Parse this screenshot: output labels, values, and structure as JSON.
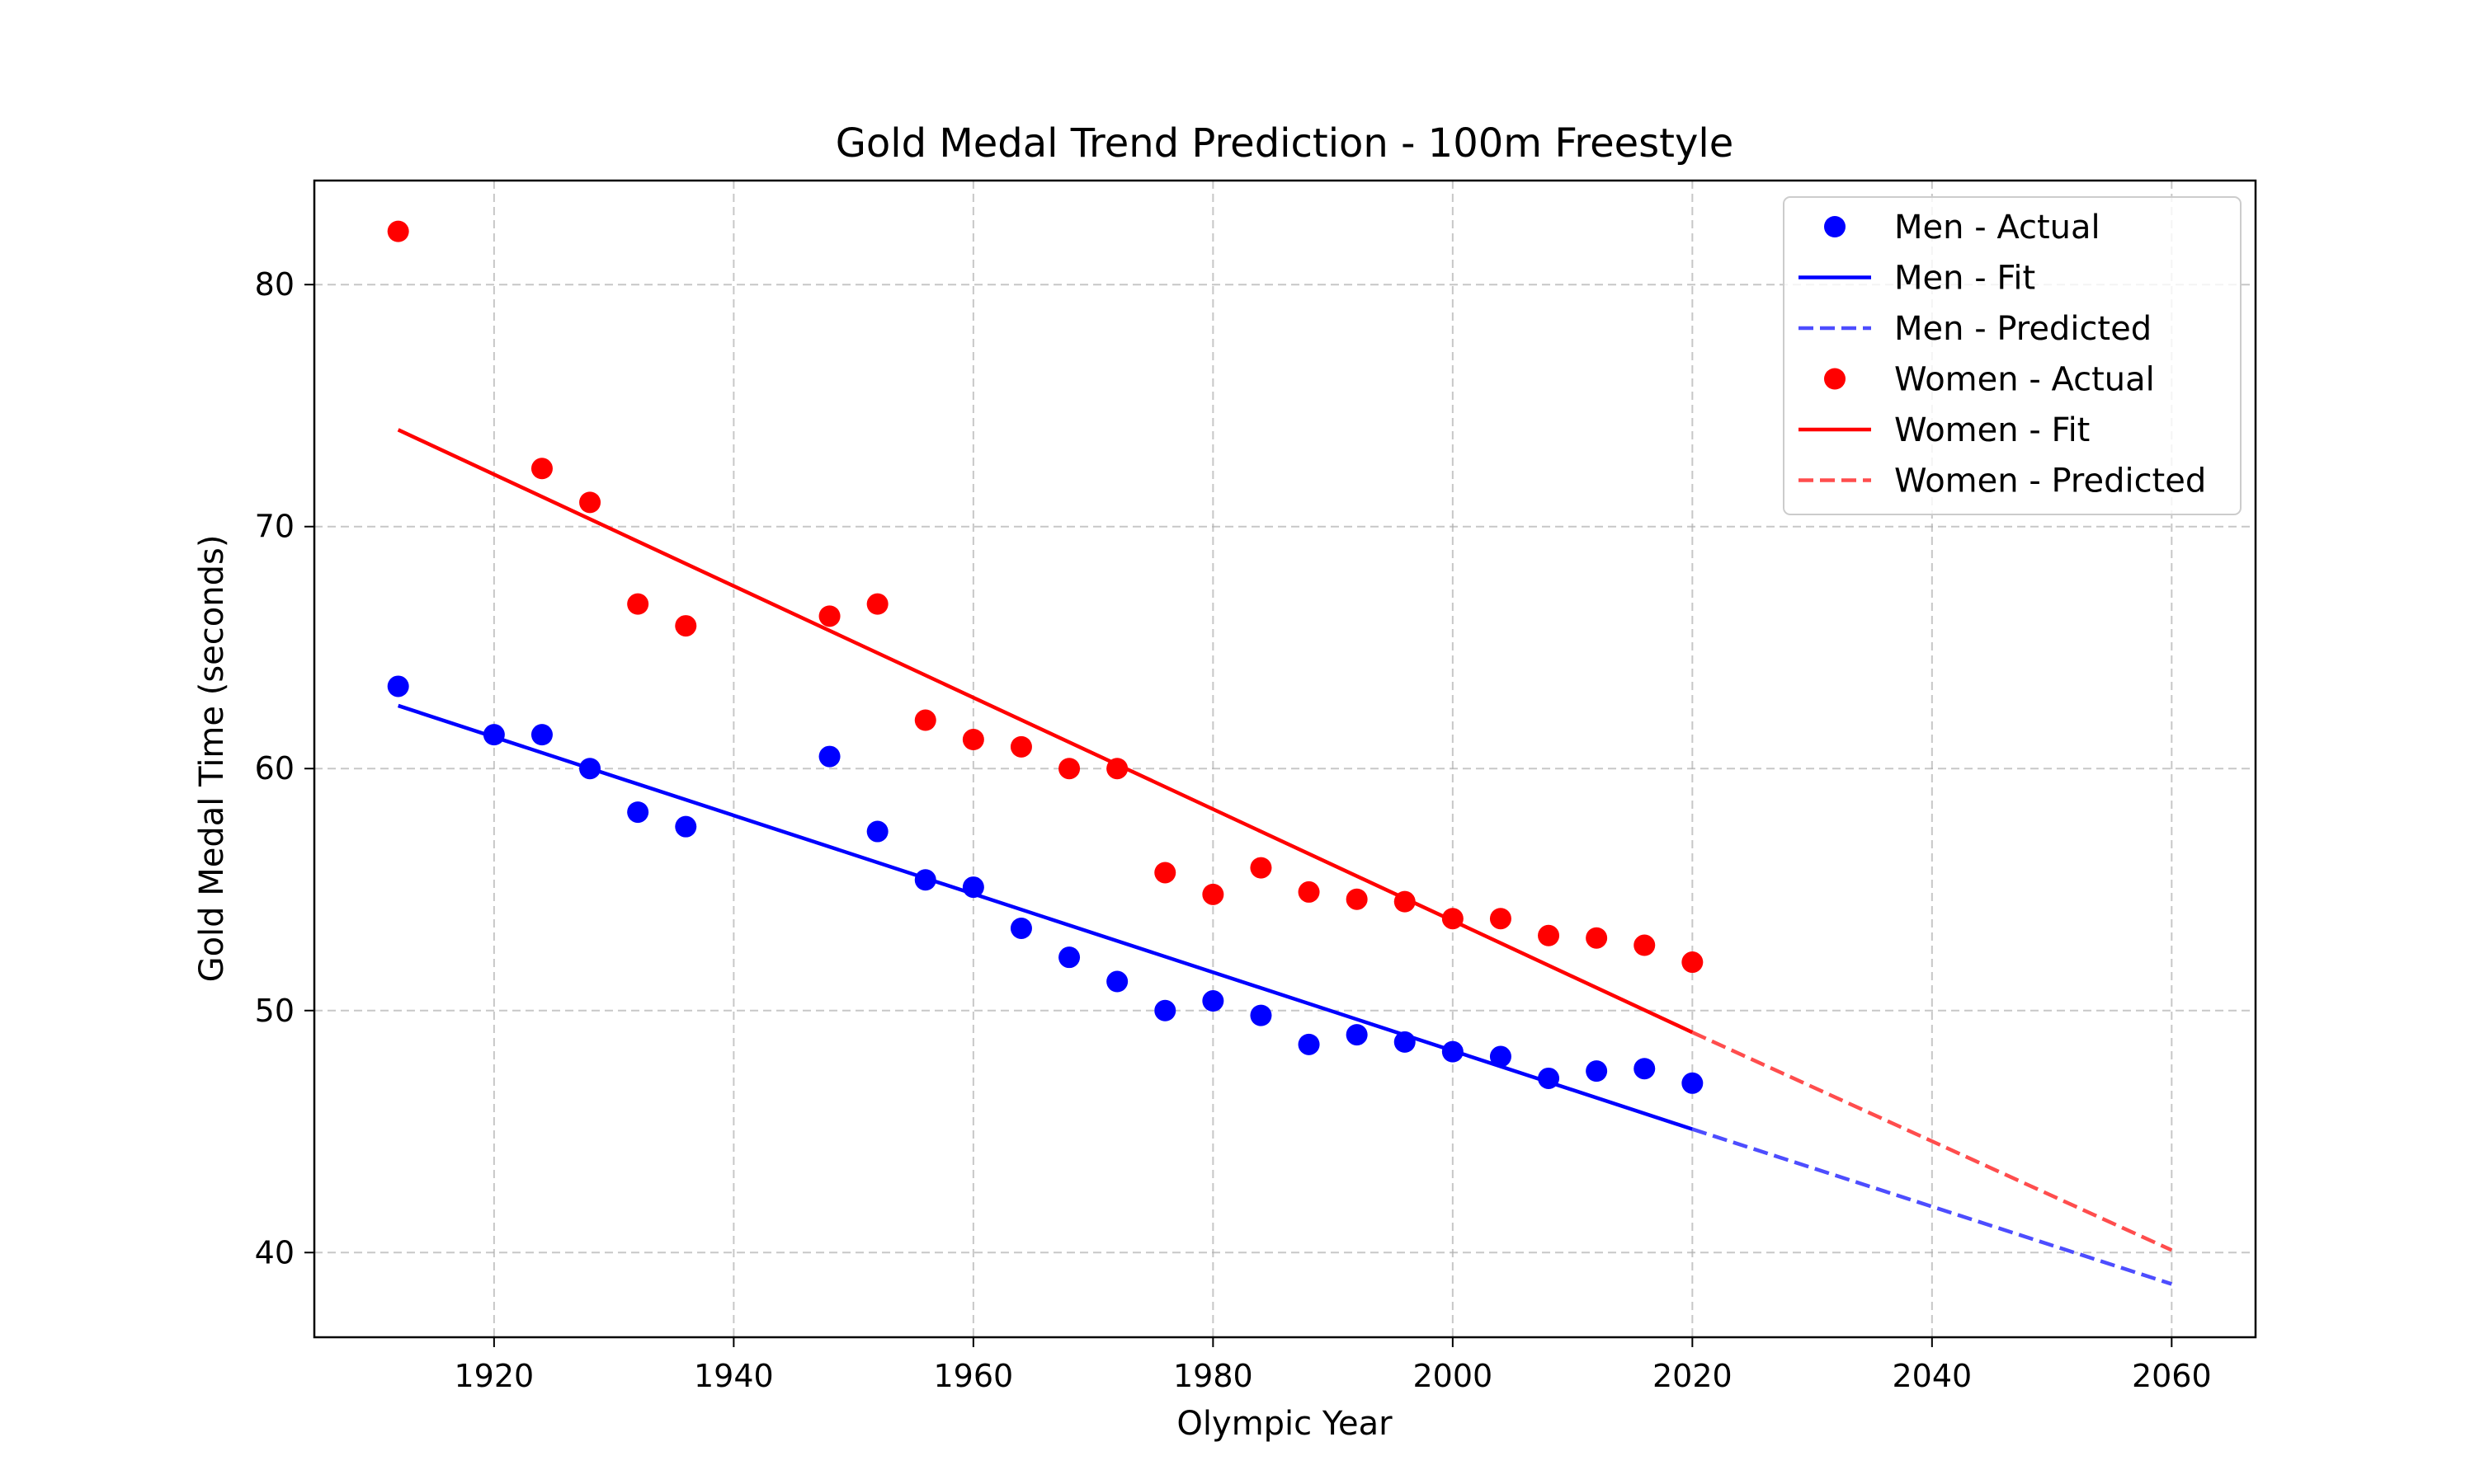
{
  "chart_data": {
    "type": "scatter",
    "title": "Gold Medal Trend Prediction - 100m Freestyle",
    "xlabel": "Olympic Year",
    "ylabel": "Gold Medal Time (seconds)",
    "xlim": [
      1905,
      2067
    ],
    "ylim": [
      36.5,
      84.3
    ],
    "xticks": [
      1920,
      1940,
      1960,
      1980,
      2000,
      2020,
      2040,
      2060
    ],
    "yticks": [
      40,
      50,
      60,
      70,
      80
    ],
    "grid": true,
    "legend_position": "top-right",
    "series": [
      {
        "name": "Men - Actual",
        "kind": "scatter",
        "color": "#0000ff",
        "x": [
          1912,
          1920,
          1924,
          1928,
          1932,
          1936,
          1948,
          1952,
          1956,
          1960,
          1964,
          1968,
          1972,
          1976,
          1980,
          1984,
          1988,
          1992,
          1996,
          2000,
          2004,
          2008,
          2012,
          2016,
          2020
        ],
        "y": [
          63.4,
          61.4,
          61.4,
          60.0,
          58.2,
          57.6,
          60.5,
          57.4,
          55.4,
          55.1,
          53.4,
          52.2,
          51.2,
          50.0,
          50.4,
          49.8,
          48.6,
          49.0,
          48.7,
          48.3,
          48.1,
          47.2,
          47.5,
          47.6,
          47.0
        ]
      },
      {
        "name": "Men - Fit",
        "kind": "line",
        "color": "#0000ff",
        "dash": "solid",
        "x": [
          1912,
          2020
        ],
        "y": [
          62.6,
          45.1
        ]
      },
      {
        "name": "Men - Predicted",
        "kind": "line",
        "color": "#4d4dff",
        "dash": "dashed",
        "x": [
          2020,
          2060
        ],
        "y": [
          45.1,
          38.7
        ]
      },
      {
        "name": "Women - Actual",
        "kind": "scatter",
        "color": "#ff0000",
        "x": [
          1912,
          1924,
          1928,
          1932,
          1936,
          1948,
          1952,
          1956,
          1960,
          1964,
          1968,
          1972,
          1976,
          1980,
          1984,
          1988,
          1992,
          1996,
          2000,
          2004,
          2008,
          2012,
          2016,
          2020
        ],
        "y": [
          82.2,
          72.4,
          71.0,
          66.8,
          65.9,
          66.3,
          66.8,
          62.0,
          61.2,
          60.9,
          60.0,
          60.0,
          55.7,
          54.8,
          55.9,
          54.9,
          54.6,
          54.5,
          53.8,
          53.8,
          53.1,
          53.0,
          52.7,
          52.0
        ]
      },
      {
        "name": "Women - Fit",
        "kind": "line",
        "color": "#ff0000",
        "dash": "solid",
        "x": [
          1912,
          2020
        ],
        "y": [
          74.0,
          49.1
        ]
      },
      {
        "name": "Women - Predicted",
        "kind": "line",
        "color": "#ff4d4d",
        "dash": "dashed",
        "x": [
          2020,
          2060
        ],
        "y": [
          49.1,
          40.1
        ]
      }
    ]
  }
}
